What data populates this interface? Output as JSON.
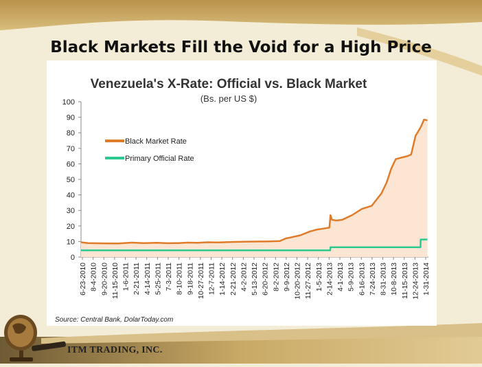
{
  "slide": {
    "title": "Black Markets Fill the Void for a High Price",
    "source": "Source: Central Bank, DolarToday.com",
    "company": "ITM TRADING, INC."
  },
  "colors": {
    "background": "#f3ecd7",
    "banner": "#caa760",
    "black_market": "#e07b2a",
    "black_market_fill": "#fce6d3",
    "official": "#2bc98f"
  },
  "chart_data": {
    "type": "line",
    "title": "Venezuela's X-Rate: Official vs. Black Market",
    "subtitle": "(Bs. per US $)",
    "ylim": [
      0,
      100
    ],
    "yticks": [
      0,
      10,
      20,
      30,
      40,
      50,
      60,
      70,
      80,
      90,
      100
    ],
    "xlim": [
      "2010-06-23",
      "2014-03-01"
    ],
    "xticks": [
      "6-23-2010",
      "8-4-2010",
      "9-20-2010",
      "11-15-2010",
      "1-6-2011",
      "2-21-2011",
      "4-14-2011",
      "5-25-2011",
      "7-3-2011",
      "8-10-2011",
      "9-18-2011",
      "10-27-2011",
      "12-7-2011",
      "1-14-2012",
      "2-21-2012",
      "4-2-2012",
      "5-13-2012",
      "6-20-2012",
      "8-2-2012",
      "9-9-2012",
      "10-20-2012",
      "11-27-2012",
      "1-5-2013",
      "2-14-2013",
      "4-1-2013",
      "5-9-2013",
      "6-16-2013",
      "7-24-2013",
      "8-31-2013",
      "10-8-2013",
      "11-15-2013",
      "12-24-2013",
      "1-31-2014"
    ],
    "grid": false,
    "legend": "top-left",
    "series": [
      {
        "name": "Black Market Rate",
        "color": "#e07b2a",
        "fill": "#fce6d3",
        "points": [
          [
            "2010-06-23",
            9.5
          ],
          [
            "2010-07-20",
            9.0
          ],
          [
            "2010-09-20",
            8.8
          ],
          [
            "2010-11-15",
            8.7
          ],
          [
            "2011-01-06",
            9.3
          ],
          [
            "2011-02-21",
            9.0
          ],
          [
            "2011-04-14",
            9.2
          ],
          [
            "2011-05-25",
            8.9
          ],
          [
            "2011-07-03",
            9.0
          ],
          [
            "2011-08-10",
            9.3
          ],
          [
            "2011-09-18",
            9.2
          ],
          [
            "2011-10-27",
            9.5
          ],
          [
            "2011-12-07",
            9.4
          ],
          [
            "2012-01-14",
            9.6
          ],
          [
            "2012-02-21",
            9.8
          ],
          [
            "2012-04-02",
            9.9
          ],
          [
            "2012-05-13",
            10.0
          ],
          [
            "2012-06-20",
            10.1
          ],
          [
            "2012-08-02",
            10.3
          ],
          [
            "2012-08-25",
            12.0
          ],
          [
            "2012-09-09",
            12.5
          ],
          [
            "2012-10-20",
            14.0
          ],
          [
            "2012-11-27",
            16.5
          ],
          [
            "2012-12-20",
            17.5
          ],
          [
            "2013-01-05",
            18.0
          ],
          [
            "2013-01-25",
            18.5
          ],
          [
            "2013-02-10",
            19.0
          ],
          [
            "2013-02-14",
            27.0
          ],
          [
            "2013-02-20",
            24.0
          ],
          [
            "2013-03-10",
            23.5
          ],
          [
            "2013-04-01",
            24.0
          ],
          [
            "2013-05-09",
            27.0
          ],
          [
            "2013-06-16",
            31.0
          ],
          [
            "2013-07-24",
            33.0
          ],
          [
            "2013-08-31",
            41.0
          ],
          [
            "2013-09-20",
            48.0
          ],
          [
            "2013-10-08",
            57.0
          ],
          [
            "2013-10-25",
            63.0
          ],
          [
            "2013-11-15",
            64.0
          ],
          [
            "2013-12-10",
            65.0
          ],
          [
            "2013-12-24",
            66.0
          ],
          [
            "2014-01-10",
            78.0
          ],
          [
            "2014-01-31",
            84.0
          ],
          [
            "2014-02-12",
            88.5
          ],
          [
            "2014-02-25",
            88.0
          ]
        ]
      },
      {
        "name": "Primary Official Rate",
        "color": "#2bc98f",
        "points": [
          [
            "2010-06-23",
            4.3
          ],
          [
            "2013-02-13",
            4.3
          ],
          [
            "2013-02-14",
            6.3
          ],
          [
            "2014-01-29",
            6.3
          ],
          [
            "2014-01-30",
            11.3
          ],
          [
            "2014-02-25",
            11.3
          ]
        ]
      }
    ]
  }
}
